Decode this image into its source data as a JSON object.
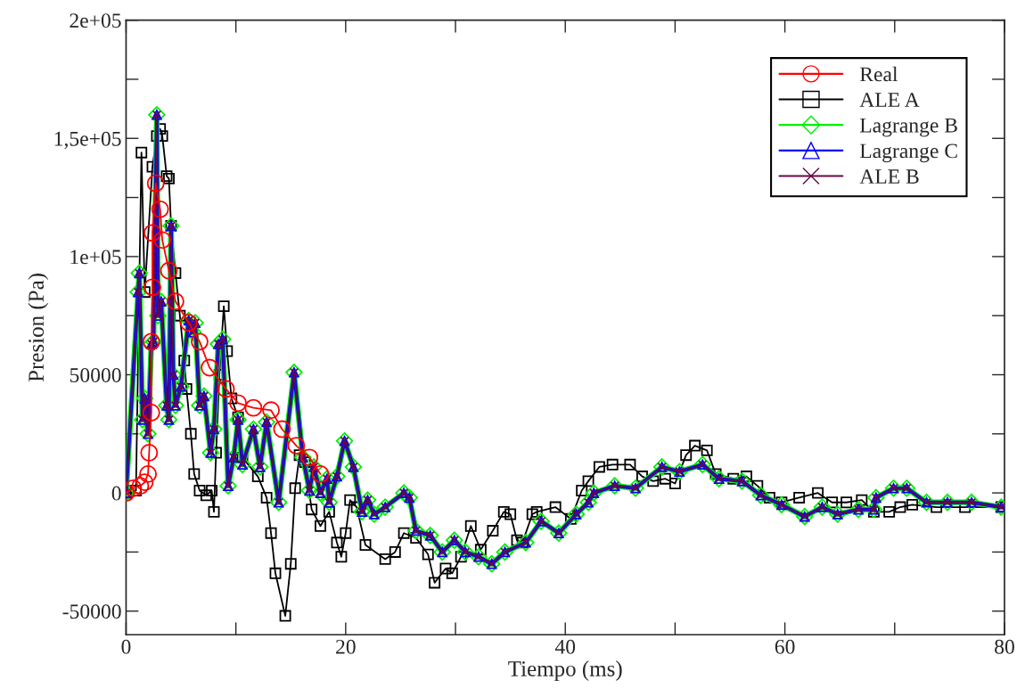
{
  "chart_data": {
    "type": "line",
    "xlabel": "Tiempo (ms)",
    "ylabel": "Presion (Pa)",
    "xlim": [
      0,
      80
    ],
    "xticks": [
      0,
      {
        "value": 10,
        "label": null
      },
      20,
      {
        "value": 30,
        "label": null
      },
      40,
      {
        "value": 50,
        "label": null
      },
      60,
      {
        "value": 70,
        "label": null
      },
      80
    ],
    "ylim": [
      -60000,
      200000
    ],
    "yticks": [
      {
        "value": -50000,
        "label": "-50000"
      },
      {
        "value": -25000,
        "label": null
      },
      0,
      {
        "value": 25000,
        "label": null
      },
      50000,
      {
        "value": 75000,
        "label": null
      },
      {
        "value": 100000,
        "label": "1e+05"
      },
      {
        "value": 125000,
        "label": null
      },
      {
        "value": 150000,
        "label": "1,5e+05"
      },
      {
        "value": 175000,
        "label": null
      },
      {
        "value": 200000,
        "label": "2e+05"
      }
    ],
    "grid": false,
    "legend": "top right",
    "line_style": "solid",
    "series": [
      {
        "name": "Real",
        "color": "#ff0000",
        "marker": "circle",
        "x": [
          0,
          0.65,
          1.3,
          1.7,
          2.0,
          2.1,
          2.3,
          2.3,
          2.4,
          2.4,
          2.7,
          3.1,
          3.3,
          3.9,
          4.5,
          5.7,
          6.7,
          7.6,
          9.1,
          10.2,
          11.6,
          13.2,
          14.2,
          15.5,
          16.7,
          17.7
        ],
        "values": [
          0,
          2000,
          3000,
          4500,
          8000,
          17000,
          34000,
          64000,
          87000,
          110000,
          131000,
          120000,
          107000,
          94000,
          81000,
          72000,
          64000,
          53000,
          44000,
          38000,
          36000,
          35000,
          27000,
          20000,
          15000,
          8000
        ]
      },
      {
        "name": "ALE A",
        "color": "#000000",
        "marker": "square",
        "x": [
          0,
          0.9,
          1.4,
          1.7,
          2.4,
          2.8,
          3.1,
          3.3,
          3.7,
          3.9,
          4.1,
          4.5,
          4.9,
          5.3,
          5.5,
          5.9,
          6.2,
          6.7,
          7.3,
          7.8,
          8.0,
          8.2,
          8.5,
          8.9,
          9.2,
          9.6,
          10.2,
          10.6,
          12.0,
          12.8,
          13.2,
          13.6,
          14.5,
          15.0,
          15.4,
          15.8,
          16.3,
          16.9,
          17.7,
          18.5,
          19.2,
          19.6,
          20.0,
          20.4,
          21.0,
          21.8,
          23.6,
          24.5,
          25.3,
          26.4,
          27.5,
          28.1,
          29.1,
          29.7,
          30.5,
          31.4,
          32.3,
          33.4,
          34.4,
          35.0,
          35.6,
          36.1,
          37.0,
          37.4,
          39.1,
          40.5,
          41.5,
          42.1,
          43.1,
          44.3,
          45.9,
          47.0,
          48.0,
          49.1,
          50.0,
          51.0,
          51.8,
          52.9,
          53.7,
          55.3,
          56.5,
          57.5,
          58.6,
          59.7,
          61.3,
          63.0,
          64.3,
          65.6,
          67.0,
          68.1,
          69.5,
          70.5,
          71.6,
          73.8,
          76.4,
          79.7
        ],
        "values": [
          0,
          1000,
          144000,
          85000,
          138000,
          151000,
          154000,
          151000,
          134000,
          133000,
          113000,
          93000,
          75000,
          56000,
          44000,
          25000,
          8000,
          1000,
          -1000,
          1000,
          -8000,
          17000,
          50000,
          79000,
          60000,
          40000,
          32000,
          15000,
          7000,
          -2000,
          -17000,
          -34000,
          -52000,
          -30000,
          2000,
          16000,
          13000,
          -7000,
          -14000,
          -8000,
          -21000,
          -27000,
          -17000,
          -3000,
          -6000,
          -22000,
          -28000,
          -25000,
          -17000,
          -19000,
          -26000,
          -38000,
          -32000,
          -34000,
          -27000,
          -14000,
          -24000,
          -16000,
          -8000,
          -9000,
          -20000,
          -21000,
          -9000,
          -8000,
          -6000,
          -11000,
          1000,
          5000,
          11000,
          12000,
          12000,
          7000,
          5000,
          6000,
          4000,
          16000,
          20000,
          18000,
          8000,
          6000,
          7000,
          3000,
          -2000,
          -4000,
          -2000,
          0,
          -4000,
          -4000,
          -3000,
          -8000,
          -8000,
          -6000,
          -5000,
          -6000,
          -6000,
          -6000
        ]
      },
      {
        "name": "Lagrange B",
        "color": "#00ee00",
        "marker": "diamond",
        "x": [
          0,
          1.1,
          1.2,
          1.5,
          1.7,
          2.0,
          2.3,
          2.5,
          2.8,
          2.9,
          3.2,
          3.7,
          3.9,
          4.1,
          4.3,
          4.5,
          5.0,
          5.7,
          6.1,
          6.3,
          6.7,
          7.1,
          7.7,
          8.0,
          8.4,
          8.8,
          9.3,
          9.8,
          10.2,
          10.6,
          11.6,
          12.2,
          12.8,
          13.9,
          15.3,
          16.1,
          16.7,
          17.1,
          17.7,
          18.3,
          18.5,
          19.2,
          19.9,
          20.7,
          21.5,
          22.0,
          22.6,
          23.6,
          25.3,
          25.8,
          26.4,
          27.7,
          28.8,
          29.9,
          30.9,
          32.1,
          33.3,
          34.5,
          36.4,
          37.8,
          39.4,
          41.0,
          42.1,
          42.6,
          44.5,
          46.4,
          48.8,
          50.4,
          52.5,
          54.0,
          56.1,
          57.8,
          59.7,
          61.8,
          63.4,
          64.8,
          66.7,
          68.1,
          68.3,
          69.9,
          71.1,
          72.9,
          74.8,
          77.0,
          79.7
        ],
        "values": [
          0,
          85000,
          93000,
          31000,
          40000,
          25000,
          63000,
          64000,
          160000,
          75000,
          81000,
          37000,
          31000,
          113000,
          50000,
          37000,
          45000,
          73000,
          68000,
          72000,
          37000,
          41000,
          17000,
          27000,
          63000,
          65000,
          3000,
          15000,
          31000,
          12000,
          27000,
          11000,
          30000,
          -4000,
          51000,
          15000,
          1000,
          11000,
          0,
          6000,
          -4000,
          7000,
          22000,
          11000,
          -8000,
          -3000,
          -9000,
          -6000,
          0,
          -2000,
          -16000,
          -18000,
          -25000,
          -20000,
          -25000,
          -27000,
          -30000,
          -25000,
          -21000,
          -12000,
          -17000,
          -9000,
          -4000,
          0,
          3000,
          2000,
          11000,
          9000,
          12000,
          6000,
          5000,
          -1000,
          -5000,
          -10000,
          -6000,
          -9000,
          -7000,
          -7000,
          -2000,
          2000,
          2000,
          -4000,
          -4000,
          -4000,
          -6000
        ]
      },
      {
        "name": "Lagrange C",
        "color": "#0000ff",
        "marker": "triangle",
        "x": [
          0,
          1.1,
          1.2,
          1.5,
          1.7,
          2.0,
          2.3,
          2.5,
          2.8,
          2.9,
          3.2,
          3.7,
          3.9,
          4.1,
          4.3,
          4.5,
          5.0,
          5.7,
          6.1,
          6.3,
          6.7,
          7.1,
          7.7,
          8.0,
          8.4,
          8.8,
          9.3,
          9.8,
          10.2,
          10.6,
          11.6,
          12.2,
          12.8,
          13.9,
          15.3,
          16.1,
          16.7,
          17.1,
          17.7,
          18.3,
          18.5,
          19.2,
          19.9,
          20.7,
          21.5,
          22.0,
          22.6,
          23.6,
          25.3,
          25.8,
          26.4,
          27.7,
          28.8,
          29.9,
          30.9,
          32.1,
          33.3,
          34.5,
          36.4,
          37.8,
          39.4,
          41.0,
          42.1,
          42.6,
          44.5,
          46.4,
          48.8,
          50.4,
          52.5,
          54.0,
          56.1,
          57.8,
          59.7,
          61.8,
          63.4,
          64.8,
          66.7,
          68.1,
          68.3,
          69.9,
          71.1,
          72.9,
          74.8,
          77.0,
          79.7
        ],
        "values": [
          0,
          85000,
          93000,
          31000,
          40000,
          25000,
          63000,
          64000,
          160000,
          75000,
          81000,
          37000,
          31000,
          113000,
          50000,
          37000,
          45000,
          73000,
          68000,
          72000,
          37000,
          41000,
          17000,
          27000,
          63000,
          65000,
          3000,
          15000,
          31000,
          12000,
          27000,
          11000,
          30000,
          -4000,
          51000,
          15000,
          1000,
          11000,
          0,
          6000,
          -4000,
          7000,
          22000,
          11000,
          -8000,
          -3000,
          -9000,
          -6000,
          0,
          -2000,
          -16000,
          -18000,
          -25000,
          -20000,
          -25000,
          -27000,
          -30000,
          -25000,
          -21000,
          -12000,
          -17000,
          -9000,
          -4000,
          0,
          3000,
          2000,
          11000,
          9000,
          12000,
          6000,
          5000,
          -1000,
          -5000,
          -10000,
          -6000,
          -9000,
          -7000,
          -7000,
          -2000,
          2000,
          2000,
          -4000,
          -4000,
          -4000,
          -6000
        ]
      },
      {
        "name": "ALE B",
        "color": "#670748",
        "marker": "cross",
        "x": [
          0,
          1.1,
          1.2,
          1.5,
          1.7,
          2.0,
          2.3,
          2.5,
          2.8,
          2.9,
          3.2,
          3.7,
          3.9,
          4.1,
          4.3,
          4.5,
          5.0,
          5.7,
          6.1,
          6.3,
          6.7,
          7.1,
          7.7,
          8.0,
          8.4,
          8.8,
          9.3,
          9.8,
          10.2,
          10.6,
          11.6,
          12.2,
          12.8,
          13.9,
          15.3,
          16.1,
          16.7,
          17.1,
          17.7,
          18.3,
          18.5,
          19.2,
          19.9,
          20.7,
          21.5,
          22.0,
          22.6,
          23.6,
          25.3,
          25.8,
          26.4,
          27.7,
          28.8,
          29.9,
          30.9,
          32.1,
          33.3,
          34.5,
          36.4,
          37.8,
          39.4,
          41.0,
          42.1,
          42.6,
          44.5,
          46.4,
          48.8,
          50.4,
          52.5,
          54.0,
          56.1,
          57.8,
          59.7,
          61.8,
          63.4,
          64.8,
          66.7,
          68.1,
          68.3,
          69.9,
          71.1,
          72.9,
          74.8,
          77.0,
          79.7
        ],
        "values": [
          0,
          85000,
          93000,
          31000,
          40000,
          25000,
          63000,
          64000,
          160000,
          75000,
          81000,
          37000,
          31000,
          113000,
          50000,
          37000,
          45000,
          73000,
          68000,
          72000,
          37000,
          41000,
          17000,
          27000,
          63000,
          65000,
          3000,
          15000,
          31000,
          12000,
          27000,
          11000,
          30000,
          -4000,
          51000,
          15000,
          1000,
          11000,
          0,
          6000,
          -4000,
          7000,
          22000,
          11000,
          -8000,
          -3000,
          -9000,
          -6000,
          0,
          -2000,
          -16000,
          -18000,
          -25000,
          -20000,
          -25000,
          -27000,
          -30000,
          -25000,
          -21000,
          -12000,
          -17000,
          -9000,
          -4000,
          0,
          3000,
          2000,
          11000,
          9000,
          12000,
          6000,
          5000,
          -1000,
          -5000,
          -10000,
          -6000,
          -9000,
          -7000,
          -7000,
          -2000,
          2000,
          2000,
          -4000,
          -4000,
          -4000,
          -6000
        ]
      }
    ]
  }
}
